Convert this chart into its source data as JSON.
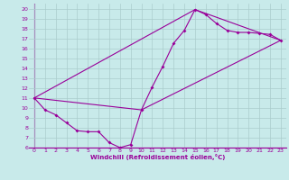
{
  "xlabel": "Windchill (Refroidissement éolien,°C)",
  "bg_color": "#c8eaea",
  "grid_color": "#aacccc",
  "line_color": "#990099",
  "xlim": [
    -0.5,
    23.5
  ],
  "ylim": [
    6,
    20.5
  ],
  "xticks": [
    0,
    1,
    2,
    3,
    4,
    5,
    6,
    7,
    8,
    9,
    10,
    11,
    12,
    13,
    14,
    15,
    16,
    17,
    18,
    19,
    20,
    21,
    22,
    23
  ],
  "yticks": [
    6,
    7,
    8,
    9,
    10,
    11,
    12,
    13,
    14,
    15,
    16,
    17,
    18,
    19,
    20
  ],
  "line1_x": [
    0,
    1,
    2,
    3,
    4,
    5,
    6,
    7,
    8,
    9,
    10,
    11,
    12,
    13,
    14,
    15,
    16,
    17,
    18,
    19,
    20,
    21,
    22,
    23
  ],
  "line1_y": [
    11.0,
    9.8,
    9.3,
    8.5,
    7.7,
    7.6,
    7.6,
    6.5,
    6.0,
    6.3,
    9.8,
    12.1,
    14.2,
    16.5,
    17.8,
    19.9,
    19.4,
    18.5,
    17.8,
    17.6,
    17.6,
    17.5,
    17.4,
    16.8
  ],
  "line2_x": [
    0,
    10,
    23
  ],
  "line2_y": [
    11.0,
    9.8,
    16.8
  ],
  "line3_x": [
    0,
    15,
    23
  ],
  "line3_y": [
    11.0,
    19.9,
    16.8
  ]
}
